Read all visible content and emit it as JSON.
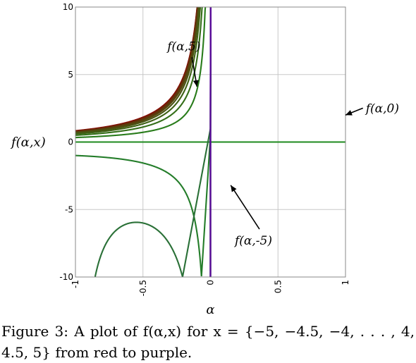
{
  "chart_data": {
    "type": "line",
    "title": "",
    "xlabel": "α",
    "ylabel": "f(α,x)",
    "xlim": [
      -1,
      1
    ],
    "ylim": [
      -10,
      10
    ],
    "x_ticks": [
      -1,
      -0.5,
      0,
      0.5,
      1
    ],
    "x_tick_labels": [
      "-1",
      "-0.5",
      "0",
      "0.5",
      "1"
    ],
    "y_ticks": [
      -10,
      -5,
      0,
      5,
      10
    ],
    "y_tick_labels": [
      "-10",
      "-5",
      "0",
      "5",
      "10"
    ],
    "grid": true,
    "series_family": {
      "x_values": [
        -5,
        -4.5,
        -4,
        -3.5,
        -3,
        -2.5,
        -2,
        -1.5,
        -1,
        -0.5,
        0,
        0.5,
        1,
        1.5,
        2,
        2.5,
        3,
        3.5,
        4,
        4.5,
        5
      ],
      "color_from": "#8b0000",
      "color_via": "#1e8a1e",
      "color_to": "#5a0a9a"
    },
    "annotations": [
      {
        "text": "f(α,5)",
        "x": -0.32,
        "y": 6.8,
        "arrow_to": [
          -0.1,
          4.1
        ]
      },
      {
        "text": "f(α,0)",
        "x": 1.15,
        "y": 2.2,
        "arrow_to": [
          1.0,
          2.0
        ]
      },
      {
        "text": "f(α,-5)",
        "x": 0.18,
        "y": -7.6,
        "arrow_to": [
          0.15,
          -3.2
        ]
      }
    ]
  },
  "caption": "Figure 3: A plot of f(α,x) for x = {−5, −4.5, −4, . . . , 4, 4.5, 5} from red to purple."
}
